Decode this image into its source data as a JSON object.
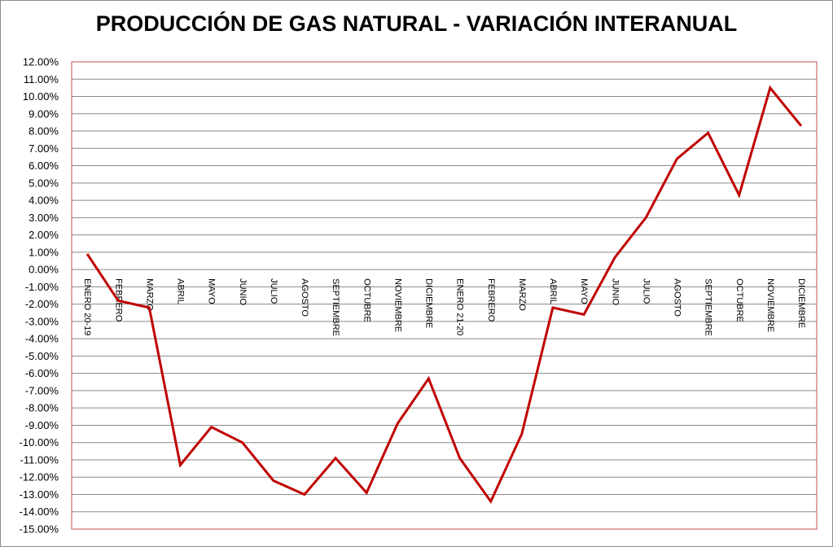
{
  "chart_data": {
    "type": "line",
    "title": "PRODUCCIÓN DE GAS NATURAL - VARIACIÓN INTERANUAL",
    "xlabel": "",
    "ylabel": "",
    "categories": [
      "ENERO 20-19",
      "FEBRERO",
      "MARZO",
      "ABRIL",
      "MAYO",
      "JUNIO",
      "JULIO",
      "AGOSTO",
      "SEPTIEMBRE",
      "OCTUBRE",
      "NOVIEMBRE",
      "DICIEMBRE",
      "ENERO 21-20",
      "FEBRERO",
      "MARZO",
      "ABRIL",
      "MAYO",
      "JUNIO",
      "JULIO",
      "AGOSTO",
      "SEPTIEMBRE",
      "OCTUBRE",
      "NOVIEMBRE",
      "DICIEMBRE"
    ],
    "series": [
      {
        "values": [
          0.9,
          -1.8,
          -2.2,
          -11.3,
          -9.1,
          -10.0,
          -12.2,
          -13.0,
          -10.9,
          -12.9,
          -8.9,
          -6.3,
          -10.9,
          -13.4,
          -9.5,
          -2.2,
          -2.6,
          0.7,
          3.0,
          6.4,
          7.9,
          4.3,
          10.5,
          8.3
        ],
        "color": "#c00000"
      }
    ],
    "ylim": [
      -15,
      12
    ],
    "ytick_step": 1,
    "ytick_labels": [
      "12.00%",
      "11.00%",
      "10.00%",
      "9.00%",
      "8.00%",
      "7.00%",
      "6.00%",
      "5.00%",
      "4.00%",
      "3.00%",
      "2.00%",
      "1.00%",
      "0.00%",
      "-1.00%",
      "-2.00%",
      "-3.00%",
      "-4.00%",
      "-5.00%",
      "-6.00%",
      "-7.00%",
      "-8.00%",
      "-9.00%",
      "-10.00%",
      "-11.00%",
      "-12.00%",
      "-13.00%",
      "-14.00%",
      "-15.00%"
    ],
    "grid": true,
    "legend": "none",
    "colors": {
      "line": "#c00000",
      "plot_border": "#c0504d",
      "grid": "#8a8a8a"
    }
  }
}
